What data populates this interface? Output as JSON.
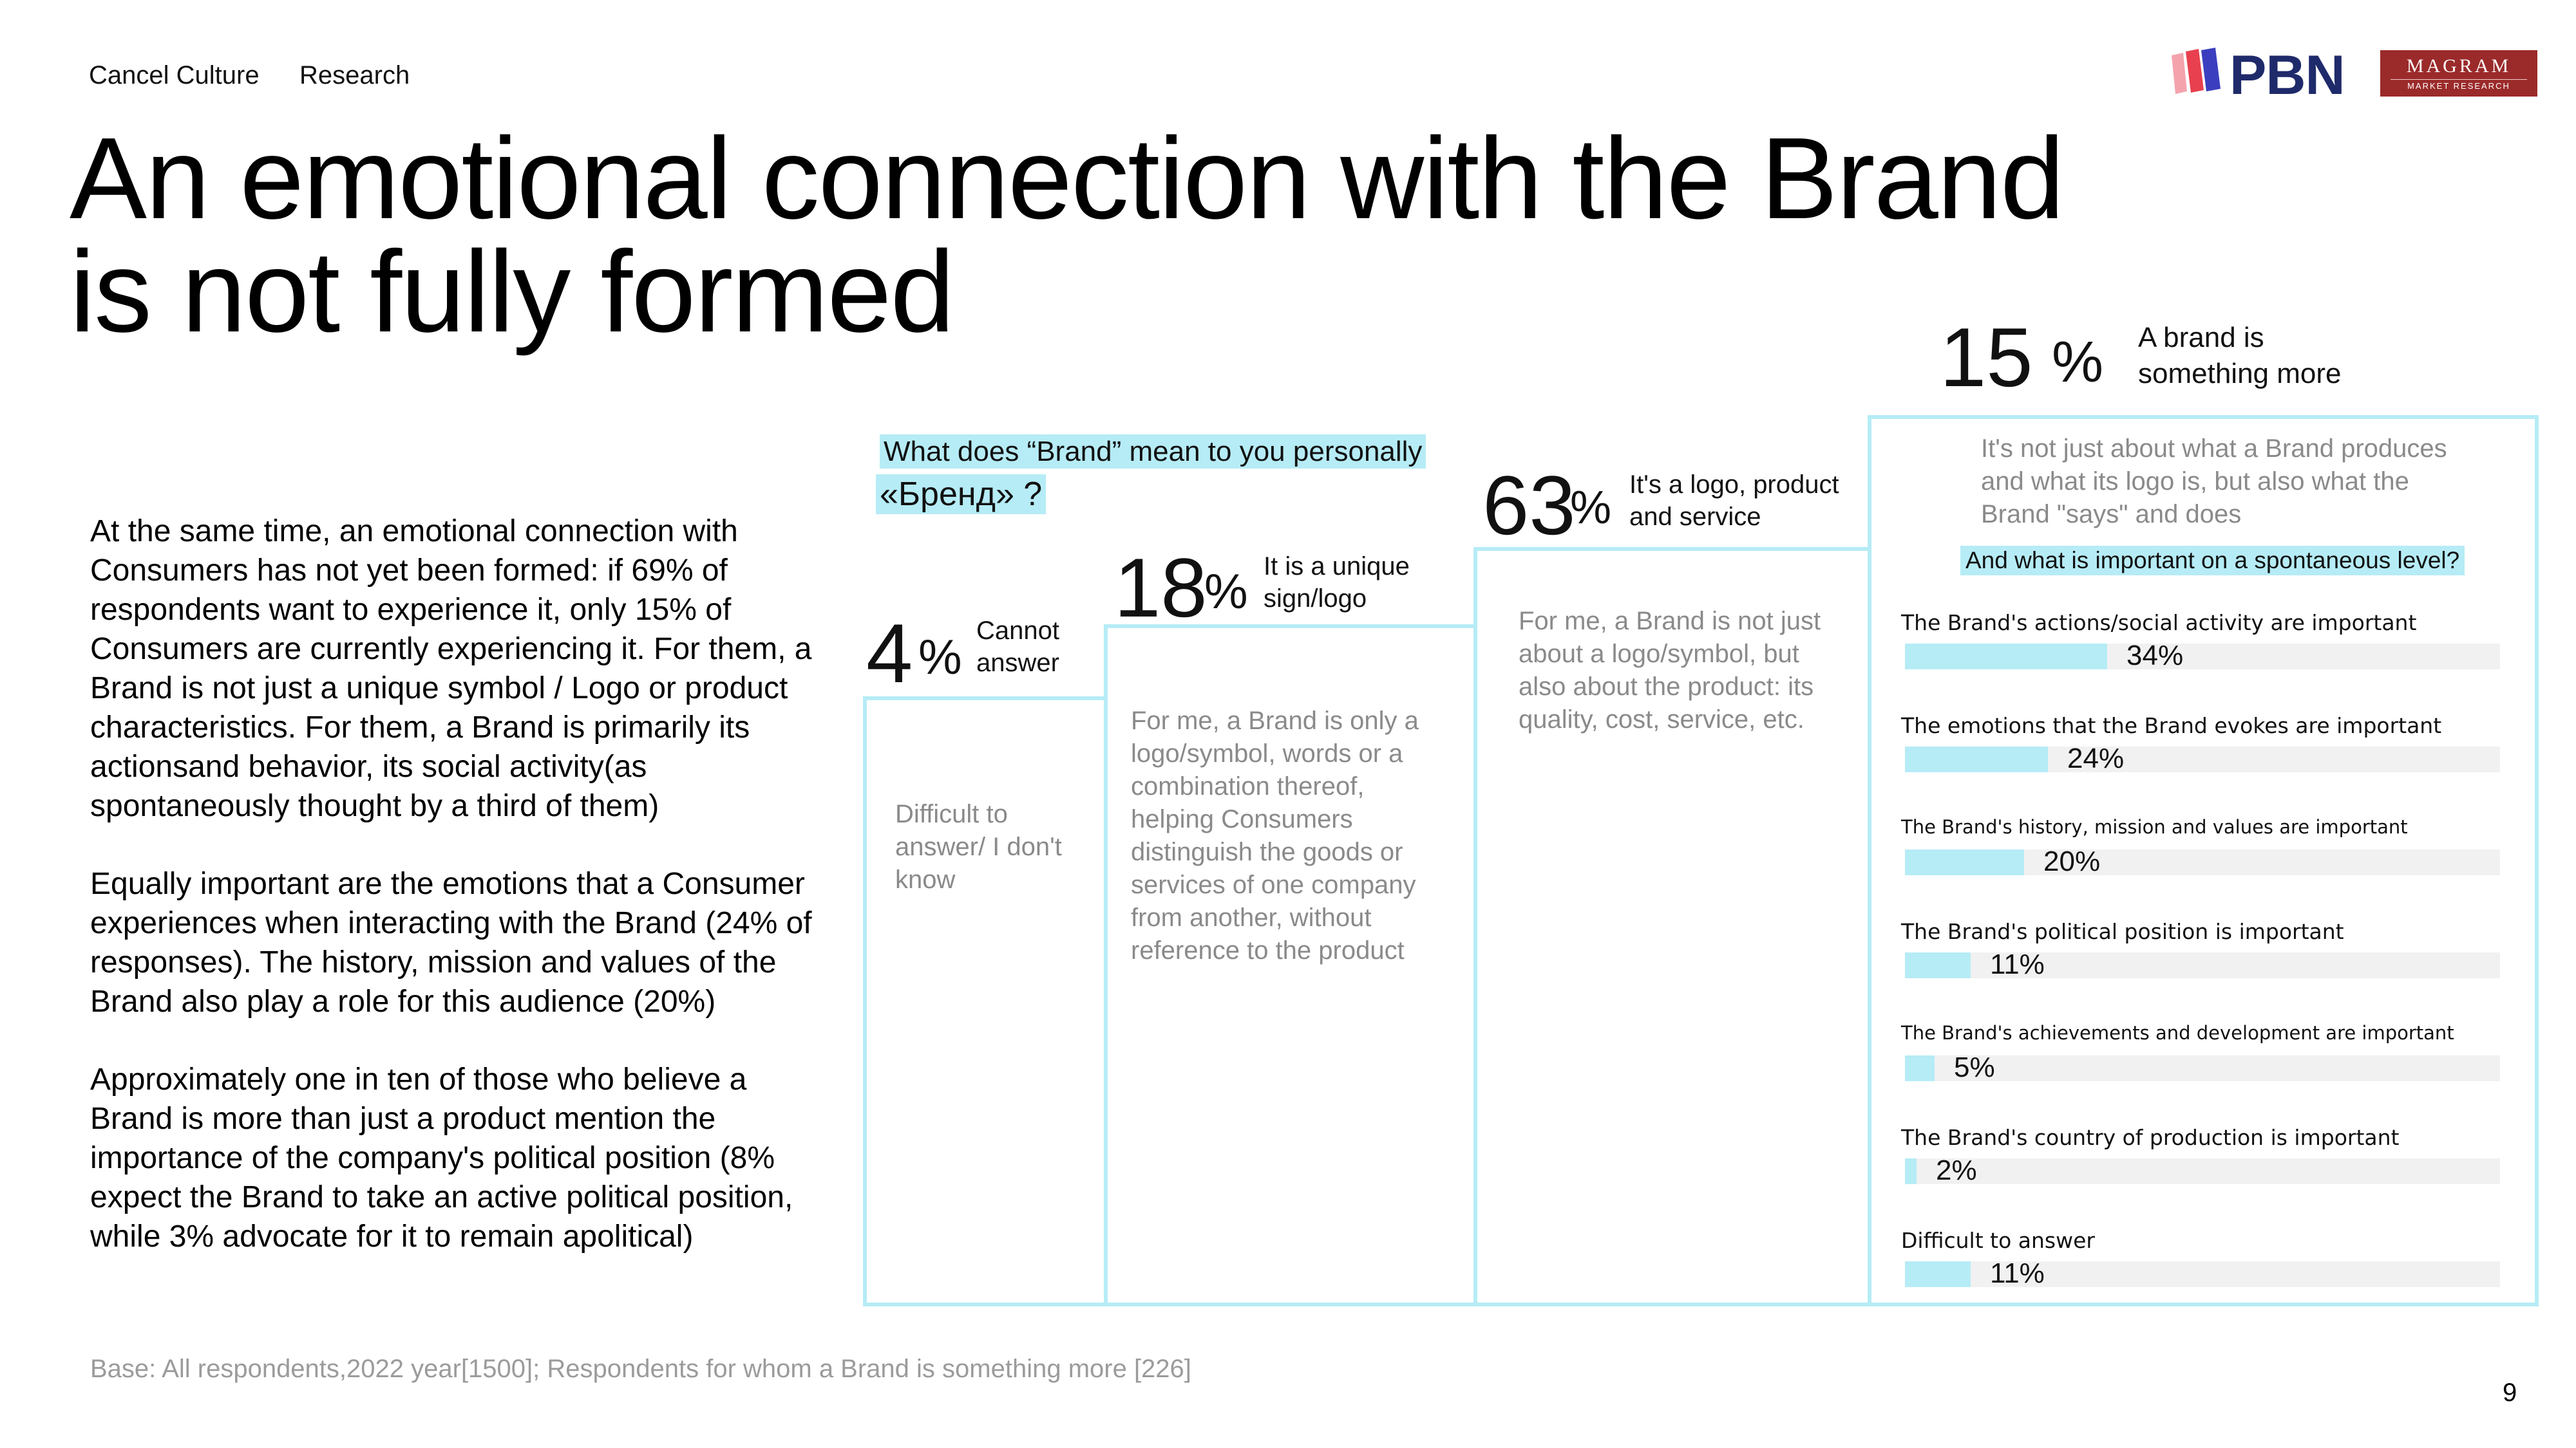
{
  "header": {
    "nav_1": "Cancel Culture",
    "nav_2": "Research",
    "logo_pbn": "PBN",
    "logo_magram": "MAGRAM",
    "logo_magram_sub": "MARKET RESEARCH"
  },
  "title_line1": "An emotional connection with the Brand",
  "title_line2": "is not fully formed",
  "body": {
    "p1": "At the same time, an emotional connection with Consumers has not yet been formed: if 69% of respondents want to experience it, only 15% of Consumers are currently experiencing it. For them, a Brand is not just a unique symbol / Logo or product characteristics. For them, a Brand is primarily its actionsand behavior, its social activity(as spontaneously thought by a third of them)",
    "p2": "Equally important are the emotions that a Consumer experiences when interacting with the Brand (24% of responses). The history, mission and values of the Brand also play a role for this audience (20%)",
    "p3": "Approximately one in ten of those who believe a Brand is more than just a product mention the importance of the company's political position (8% expect the Brand to take an active political position, while 3% advocate for it to remain apolitical)"
  },
  "question_line1": "What does “Brand” mean to you personally",
  "question_line2": "«Бренд» ?",
  "base_note": "Base: All respondents,2022 year[1500]; Respondents for whom a Brand is something more [226]",
  "page_number": "9",
  "colors": {
    "accent": "#b6ecf6",
    "track": "#f1f1f1",
    "muted_text": "#8a8a8a",
    "magram_red": "#9b2a2a",
    "pbn_navy": "#1f2a6b"
  },
  "chart_data": [
    {
      "type": "bar",
      "question": "What does “Brand” mean to you personally",
      "categories": [
        "Cannot answer",
        "It is a unique sign/logo",
        "It's a logo, product and service",
        "A brand is something more"
      ],
      "values": [
        4,
        18,
        63,
        15
      ],
      "value_labels": [
        "4",
        "18",
        "63",
        "15"
      ],
      "unit": "%",
      "descriptions": [
        "Difficult to answer/ I don't know",
        "For me, a Brand is only a logo/symbol, words or a combination thereof, helping Consumers distinguish the goods or services of one company from another, without reference to the product",
        "For me, a Brand is not just about a logo/symbol, but also about the product: its quality, cost, service, etc.",
        "It's not just about what a Brand produces and what its logo is, but also what the Brand \"says\" and does"
      ]
    },
    {
      "type": "bar",
      "orientation": "horizontal",
      "title": "And what is important on a spontaneous level?",
      "categories": [
        "The Brand's actions/social activity are important",
        "The emotions that the Brand evokes are important",
        "The Brand's history, mission and values are important",
        "The Brand's political position is important",
        "The Brand's achievements and development are important",
        "The Brand's country of production is important",
        "Difficult to answer"
      ],
      "values": [
        34,
        24,
        20,
        11,
        5,
        2,
        11
      ],
      "value_labels": [
        "34%",
        "24%",
        "20%",
        "11%",
        "5%",
        "2%",
        "11%"
      ],
      "xlim": [
        0,
        100
      ]
    }
  ]
}
